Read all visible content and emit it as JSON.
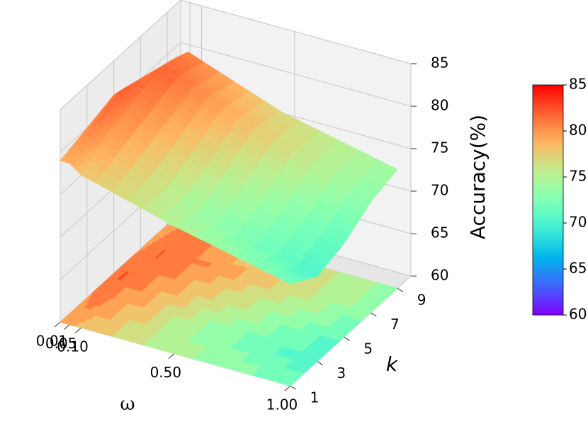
{
  "chart_data": {
    "type": "surface",
    "x_label": "ω",
    "y_label": "k",
    "z_label": "Accuracy(%)",
    "x": [
      0.01,
      0.05,
      0.1,
      0.5,
      1.0
    ],
    "y": [
      1,
      3,
      5,
      7,
      9
    ],
    "z": [
      [
        79,
        80,
        81,
        80,
        79
      ],
      [
        79,
        81,
        82,
        81,
        80
      ],
      [
        78,
        80,
        81,
        82,
        81
      ],
      [
        75,
        74,
        76,
        78,
        77
      ],
      [
        72,
        70,
        71,
        73,
        74
      ]
    ],
    "xlim": [
      0.01,
      1.0
    ],
    "ylim": [
      1,
      10
    ],
    "zlim": [
      60,
      85
    ],
    "xticks": [
      {
        "value": 0.01,
        "label": "0.01"
      },
      {
        "value": 0.05,
        "label": "0.05"
      },
      {
        "value": 0.1,
        "label": "0.10"
      },
      {
        "value": 0.5,
        "label": "0.50"
      },
      {
        "value": 1.0,
        "label": "1.00"
      }
    ],
    "yticks": [
      1,
      3,
      5,
      7,
      9
    ],
    "zticks": [
      60,
      65,
      70,
      75,
      80,
      85
    ],
    "colormap": "rainbow",
    "grid": true,
    "contour_floor": true,
    "colorbar": {
      "lim": [
        60,
        85
      ],
      "ticks": [
        60,
        65,
        70,
        75,
        80,
        85
      ]
    }
  }
}
